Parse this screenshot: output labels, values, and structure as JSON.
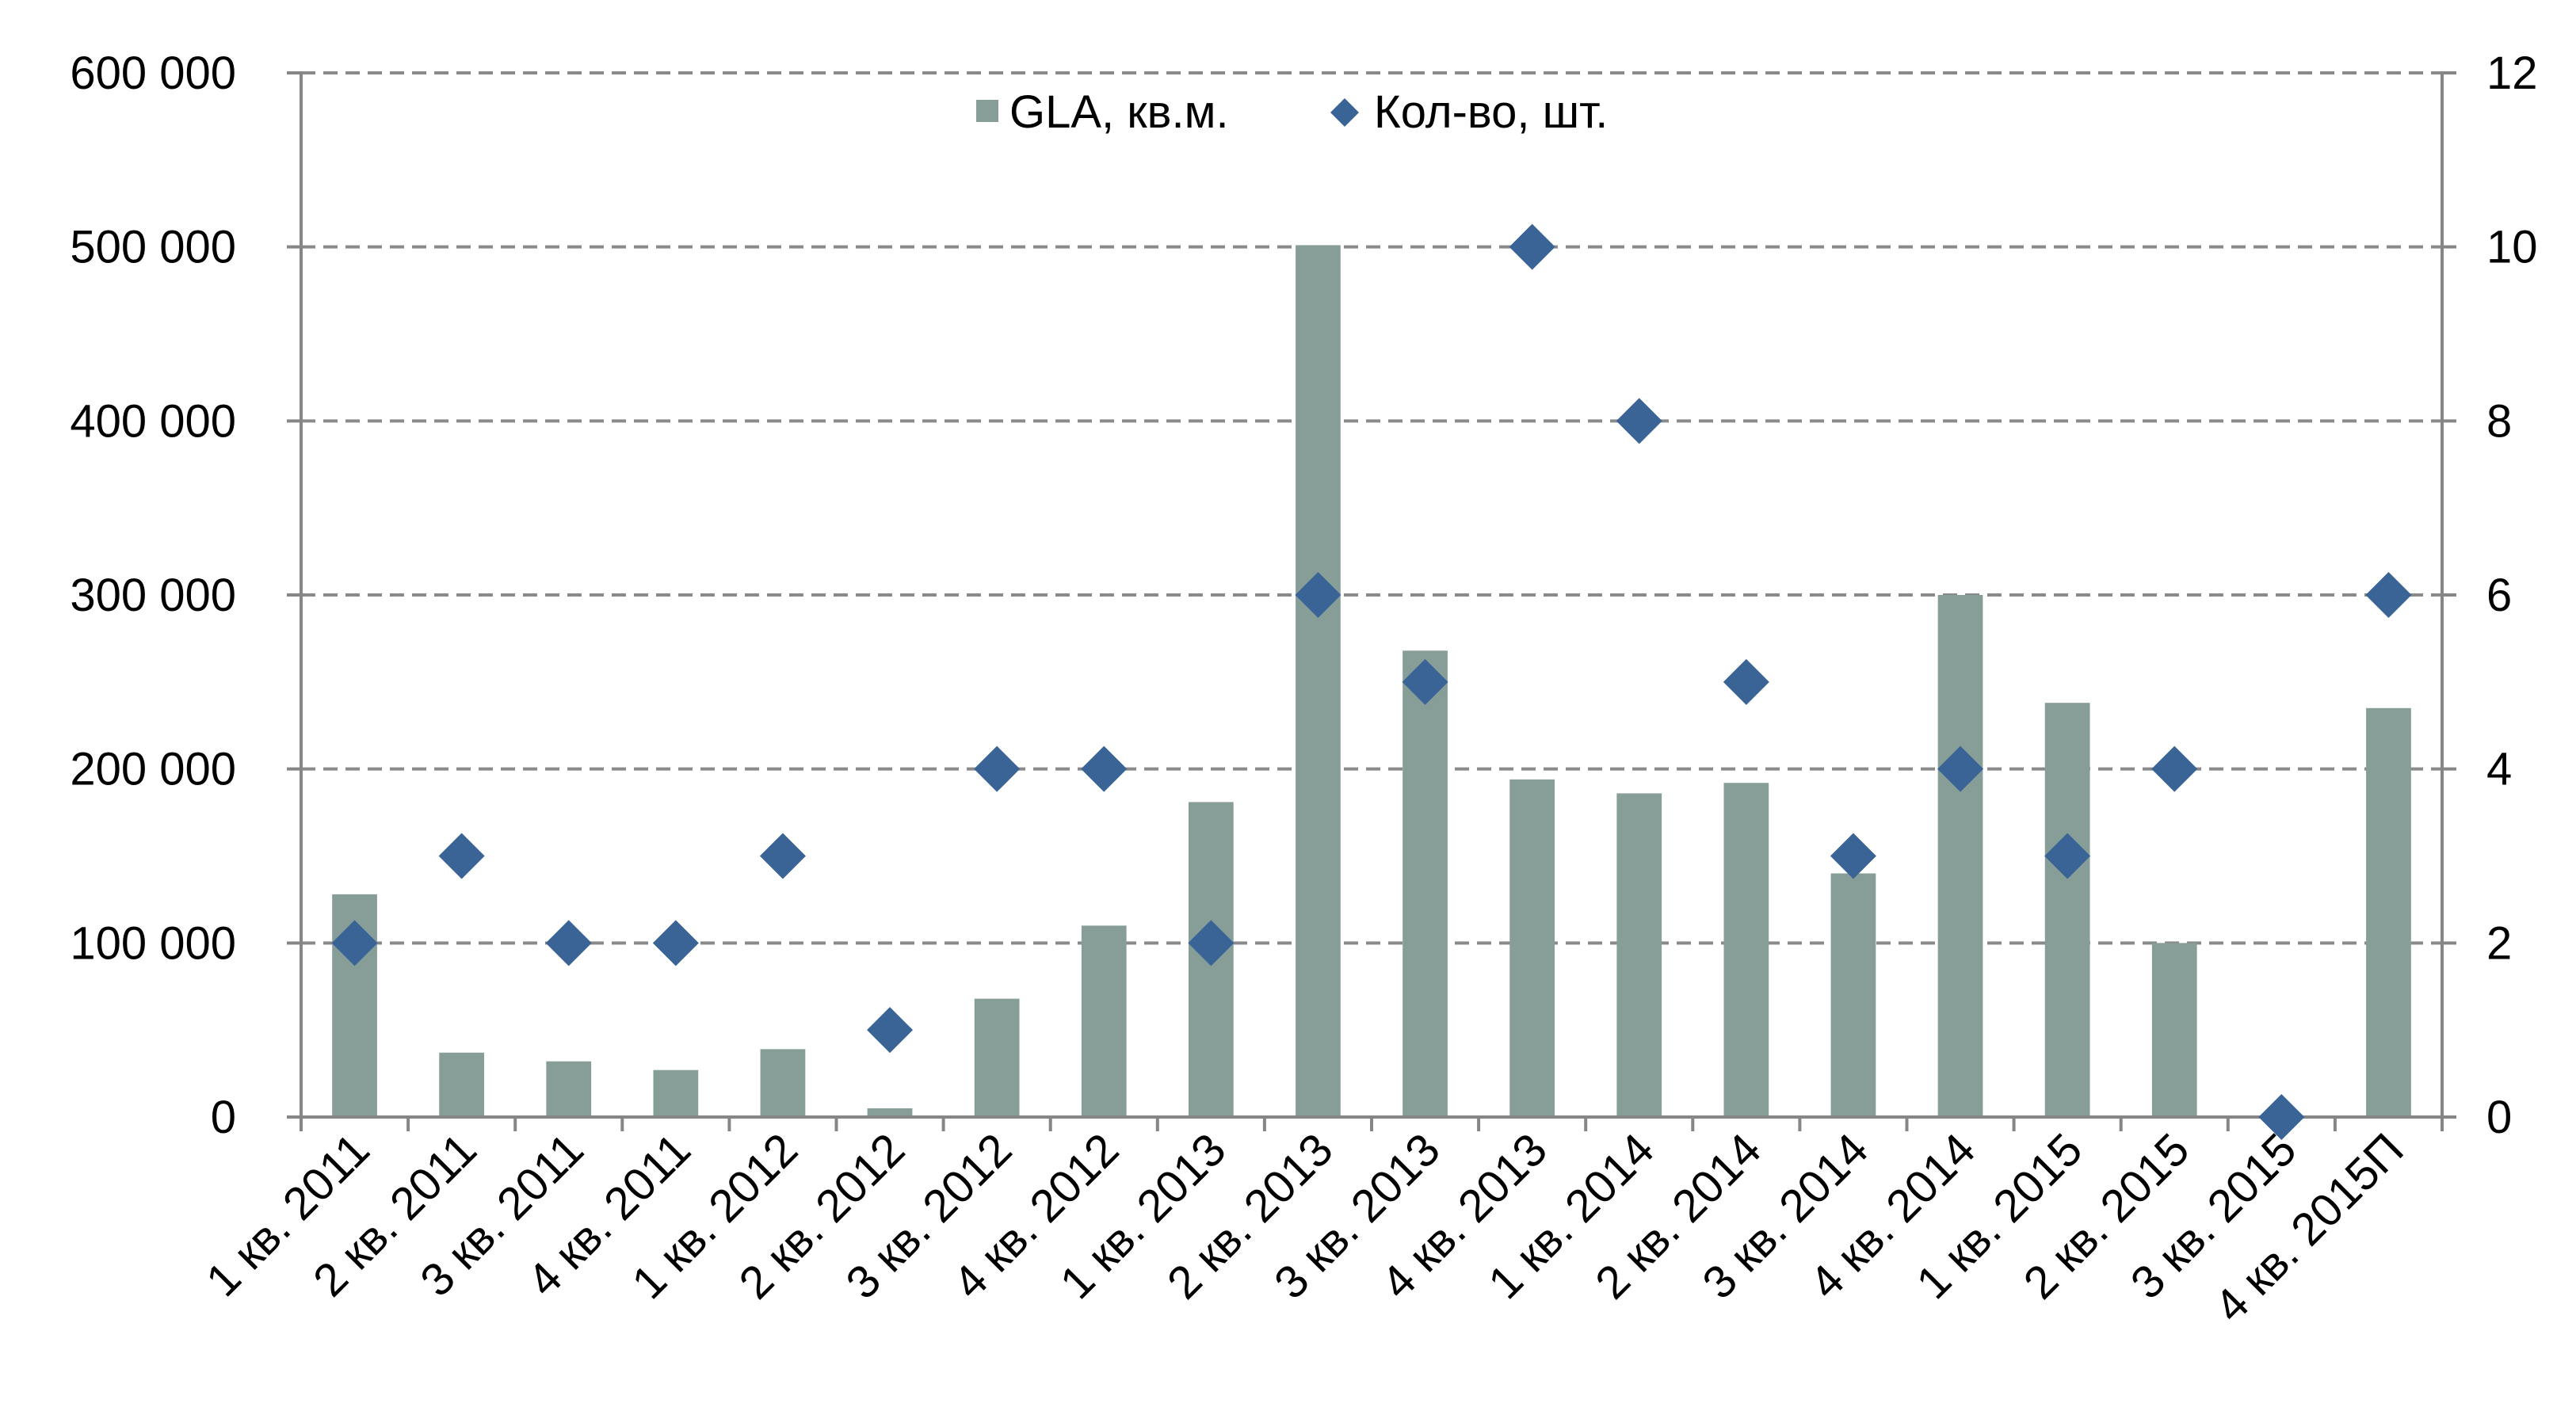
{
  "chart_data": {
    "type": "bar",
    "categories": [
      "1 кв. 2011",
      "2 кв. 2011",
      "3 кв. 2011",
      "4 кв. 2011",
      "1 кв. 2012",
      "2 кв. 2012",
      "3 кв. 2012",
      "4 кв. 2012",
      "1 кв. 2013",
      "2 кв. 2013",
      "3 кв. 2013",
      "4 кв. 2013",
      "1 кв. 2014",
      "2 кв. 2014",
      "3 кв. 2014",
      "4 кв. 2014",
      "1 кв. 2015",
      "2 кв. 2015",
      "3 кв. 2015",
      "4 кв. 2015П"
    ],
    "series": [
      {
        "name": "GLA, кв.м.",
        "type": "bar",
        "axis": "left",
        "color": "#879e98",
        "values": [
          128000,
          37000,
          32000,
          27000,
          39000,
          5000,
          68000,
          110000,
          181000,
          501000,
          268000,
          194000,
          186000,
          192000,
          140000,
          300000,
          238000,
          100000,
          0,
          235000
        ]
      },
      {
        "name": "Кол-во, шт.",
        "type": "scatter",
        "marker": "diamond",
        "axis": "right",
        "color": "#3a6496",
        "values": [
          2,
          3,
          2,
          2,
          3,
          1,
          4,
          4,
          2,
          6,
          5,
          10,
          8,
          5,
          3,
          4,
          3,
          4,
          0,
          6
        ]
      }
    ],
    "y_left": {
      "min": 0,
      "max": 600000,
      "step": 100000,
      "tick_labels": [
        "0",
        "100 000",
        "200 000",
        "300 000",
        "400 000",
        "500 000",
        "600 000"
      ]
    },
    "y_right": {
      "min": 0,
      "max": 12,
      "step": 2,
      "tick_labels": [
        "0",
        "2",
        "4",
        "6",
        "8",
        "10",
        "12"
      ]
    },
    "grid": "horizontal dashed",
    "legend_position": "top-center",
    "xlabel": "",
    "ylabel": "",
    "title": ""
  }
}
